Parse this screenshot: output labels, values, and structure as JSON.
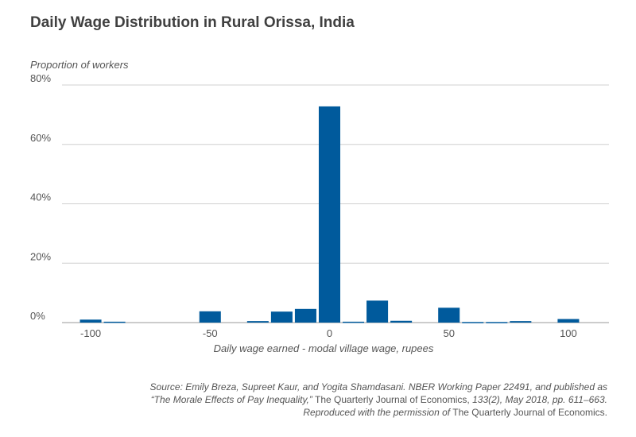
{
  "title": "Daily Wage Distribution in Rural Orissa, India",
  "chart_data": {
    "type": "bar",
    "ylabel": "Proportion of workers",
    "xlabel": "Daily wage earned - modal village wage, rupees",
    "xlim": [
      -112,
      117
    ],
    "ylim": [
      0,
      80
    ],
    "x_ticks": [
      -100,
      -50,
      0,
      50,
      100
    ],
    "x_tick_labels": [
      "-100",
      "-50",
      "0",
      "50",
      "100"
    ],
    "y_ticks": [
      0,
      20,
      40,
      60,
      80
    ],
    "y_tick_labels": [
      "0%",
      "20%",
      "40%",
      "60%",
      "80%"
    ],
    "grid": true,
    "bar_color": "#005a9c",
    "bar_width": 9,
    "x": [
      -100,
      -90,
      -50,
      -30,
      -20,
      -10,
      0,
      10,
      20,
      30,
      50,
      60,
      70,
      80,
      100
    ],
    "values": [
      1.0,
      0.3,
      3.8,
      0.5,
      3.7,
      4.6,
      72.8,
      0.3,
      7.4,
      0.6,
      5.0,
      0.2,
      0.2,
      0.5,
      1.2
    ]
  },
  "source": {
    "line1": "Source: Emily Breza, Supreet Kaur, and Yogita Shamdasani. NBER Working Paper 22491, and published as",
    "line2_italic": "“The Morale Effects of Pay Inequality,”",
    "line2_normal": " The Quarterly Journal of Economics, ",
    "line2_italic_end": "133(2), May 2018, pp. 611–663.",
    "line3_italic": "Reproduced with the permission of",
    "line3_normal": " The Quarterly Journal of Economics."
  }
}
